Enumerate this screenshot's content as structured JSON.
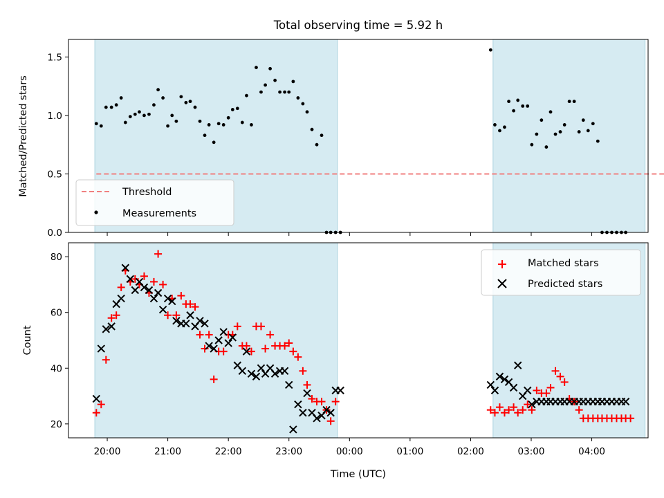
{
  "chart_data": [
    {
      "type": "scatter",
      "title": "Total observing time = 5.92 h",
      "xlabel": "",
      "ylabel": "Matched/Predicted stars",
      "ylim": [
        0,
        1.65
      ],
      "yticks": [
        0.0,
        0.5,
        1.0,
        1.5
      ],
      "ytick_labels": [
        "0.0",
        "0.5",
        "1.0",
        "1.5"
      ],
      "x_unit": "hours since 19:00 UTC",
      "xlim": [
        0.36,
        9.93
      ],
      "observing_windows": [
        [
          0.795,
          4.8
        ],
        [
          7.37,
          9.88
        ]
      ],
      "threshold": {
        "name": "Threshold",
        "value": 0.5,
        "x_range": [
          0.82,
          10.31
        ],
        "color": "#f08080"
      },
      "legend": {
        "position": "lower-left",
        "entries": [
          "Threshold",
          "Measurements"
        ]
      },
      "series": [
        {
          "name": "Measurements",
          "color": "#000000",
          "x": [
            0.82,
            0.9,
            0.98,
            1.07,
            1.15,
            1.23,
            1.3,
            1.38,
            1.46,
            1.53,
            1.61,
            1.69,
            1.77,
            1.84,
            1.92,
            2.0,
            2.07,
            2.14,
            2.22,
            2.3,
            2.37,
            2.45,
            2.53,
            2.61,
            2.68,
            2.76,
            2.84,
            2.92,
            3.0,
            3.07,
            3.15,
            3.23,
            3.3,
            3.38,
            3.46,
            3.54,
            3.61,
            3.69,
            3.77,
            3.85,
            3.93,
            4.0,
            4.07,
            4.15,
            4.23,
            4.3,
            4.38,
            4.46,
            4.54,
            4.62,
            4.69,
            4.77,
            4.85,
            7.33,
            7.4,
            7.48,
            7.56,
            7.63,
            7.71,
            7.78,
            7.86,
            7.94,
            8.01,
            8.09,
            8.17,
            8.25,
            8.32,
            8.4,
            8.48,
            8.55,
            8.63,
            8.71,
            8.79,
            8.86,
            8.94,
            9.02,
            9.1,
            9.17,
            9.25,
            9.33,
            9.41,
            9.49,
            9.56
          ],
          "y": [
            0.93,
            0.91,
            1.07,
            1.07,
            1.09,
            1.15,
            0.94,
            0.99,
            1.01,
            1.03,
            1.0,
            1.01,
            1.09,
            1.22,
            1.15,
            0.91,
            1.0,
            0.95,
            1.16,
            1.11,
            1.12,
            1.07,
            0.95,
            0.83,
            0.92,
            0.77,
            0.93,
            0.92,
            0.98,
            1.05,
            1.06,
            0.94,
            1.17,
            0.92,
            1.41,
            1.2,
            1.26,
            1.4,
            1.3,
            1.2,
            1.2,
            1.2,
            1.29,
            1.15,
            1.1,
            1.03,
            0.88,
            0.75,
            0.83,
            0.0,
            0.0,
            0.0,
            0.0,
            1.56,
            0.92,
            0.87,
            0.9,
            1.12,
            1.04,
            1.13,
            1.08,
            1.08,
            0.75,
            0.84,
            0.96,
            0.73,
            1.03,
            0.84,
            0.86,
            0.92,
            1.12,
            1.12,
            0.86,
            0.96,
            0.87,
            0.93,
            0.78,
            0.0,
            0.0,
            0.0,
            0.0,
            0.0,
            0.0
          ]
        }
      ]
    },
    {
      "type": "scatter",
      "title": "",
      "xlabel": "Time (UTC)",
      "ylabel": "Count",
      "ylim": [
        15,
        85
      ],
      "yticks": [
        20,
        40,
        60,
        80
      ],
      "ytick_labels": [
        "20",
        "40",
        "60",
        "80"
      ],
      "x_unit": "hours since 19:00 UTC",
      "xlim": [
        0.36,
        9.93
      ],
      "xticks": [
        1,
        2,
        3,
        4,
        5,
        6,
        7,
        8,
        9
      ],
      "xtick_labels": [
        "20:00",
        "21:00",
        "22:00",
        "23:00",
        "00:00",
        "01:00",
        "02:00",
        "03:00",
        "04:00"
      ],
      "observing_windows": [
        [
          0.795,
          4.8
        ],
        [
          7.37,
          9.88
        ]
      ],
      "legend": {
        "position": "upper-right",
        "entries": [
          "Matched stars",
          "Predicted stars"
        ]
      },
      "series": [
        {
          "name": "Matched stars",
          "marker": "plus",
          "color": "#ff0000",
          "x": [
            0.82,
            0.9,
            0.98,
            1.07,
            1.15,
            1.23,
            1.3,
            1.38,
            1.46,
            1.53,
            1.61,
            1.69,
            1.77,
            1.84,
            1.92,
            2.0,
            2.07,
            2.14,
            2.22,
            2.3,
            2.37,
            2.45,
            2.53,
            2.61,
            2.68,
            2.76,
            2.84,
            2.92,
            3.0,
            3.07,
            3.15,
            3.23,
            3.3,
            3.38,
            3.46,
            3.54,
            3.61,
            3.69,
            3.77,
            3.85,
            3.93,
            4.0,
            4.07,
            4.15,
            4.23,
            4.3,
            4.38,
            4.46,
            4.54,
            4.62,
            4.69,
            4.77,
            7.33,
            7.4,
            7.48,
            7.56,
            7.63,
            7.71,
            7.78,
            7.86,
            7.94,
            8.01,
            8.09,
            8.17,
            8.25,
            8.32,
            8.4,
            8.48,
            8.55,
            8.63,
            8.71,
            8.79,
            8.86,
            8.94,
            9.02,
            9.1,
            9.17,
            9.25,
            9.33,
            9.41,
            9.49,
            9.56,
            9.64
          ],
          "y": [
            24,
            27,
            43,
            58,
            59,
            69,
            75,
            71,
            72,
            70,
            73,
            67,
            71,
            81,
            70,
            59,
            65,
            59,
            66,
            63,
            63,
            62,
            52,
            47,
            52,
            36,
            46,
            46,
            52,
            52,
            55,
            48,
            48,
            46,
            55,
            55,
            47,
            52,
            48,
            48,
            48,
            49,
            46,
            44,
            39,
            34,
            29,
            28,
            28,
            25,
            21,
            28,
            25,
            24,
            26,
            24,
            25,
            26,
            24,
            25,
            27,
            25,
            32,
            31,
            31,
            33,
            39,
            37,
            35,
            29,
            28,
            25,
            22,
            22,
            22,
            22,
            22,
            22,
            22,
            22,
            22,
            22,
            22
          ]
        },
        {
          "name": "Predicted stars",
          "marker": "x",
          "color": "#000000",
          "x": [
            0.82,
            0.9,
            0.98,
            1.07,
            1.15,
            1.23,
            1.3,
            1.38,
            1.46,
            1.53,
            1.61,
            1.69,
            1.77,
            1.84,
            1.92,
            2.0,
            2.07,
            2.14,
            2.22,
            2.3,
            2.37,
            2.45,
            2.53,
            2.61,
            2.68,
            2.76,
            2.84,
            2.92,
            3.0,
            3.07,
            3.15,
            3.23,
            3.3,
            3.38,
            3.46,
            3.54,
            3.61,
            3.69,
            3.77,
            3.85,
            3.93,
            4.0,
            4.07,
            4.15,
            4.23,
            4.3,
            4.38,
            4.46,
            4.54,
            4.62,
            4.69,
            4.77,
            4.85,
            7.33,
            7.4,
            7.48,
            7.56,
            7.63,
            7.71,
            7.78,
            7.86,
            7.94,
            8.01,
            8.09,
            8.17,
            8.25,
            8.32,
            8.4,
            8.48,
            8.55,
            8.63,
            8.71,
            8.79,
            8.86,
            8.94,
            9.02,
            9.1,
            9.17,
            9.25,
            9.33,
            9.41,
            9.49,
            9.56
          ],
          "y": [
            29,
            47,
            54,
            55,
            63,
            65,
            76,
            72,
            68,
            71,
            69,
            68,
            65,
            67,
            61,
            65,
            64,
            57,
            56,
            56,
            59,
            55,
            57,
            56,
            48,
            47,
            50,
            53,
            49,
            51,
            41,
            39,
            46,
            38,
            37,
            40,
            38,
            40,
            38,
            39,
            39,
            34,
            18,
            27,
            24,
            31,
            24,
            22,
            23,
            25,
            24,
            32,
            32,
            34,
            32,
            37,
            36,
            35,
            33,
            41,
            30,
            32,
            27,
            28,
            28,
            28,
            28,
            28,
            28,
            28,
            28,
            28,
            28,
            28,
            28,
            28,
            28,
            28,
            28,
            28,
            28,
            28,
            28
          ]
        }
      ]
    }
  ]
}
